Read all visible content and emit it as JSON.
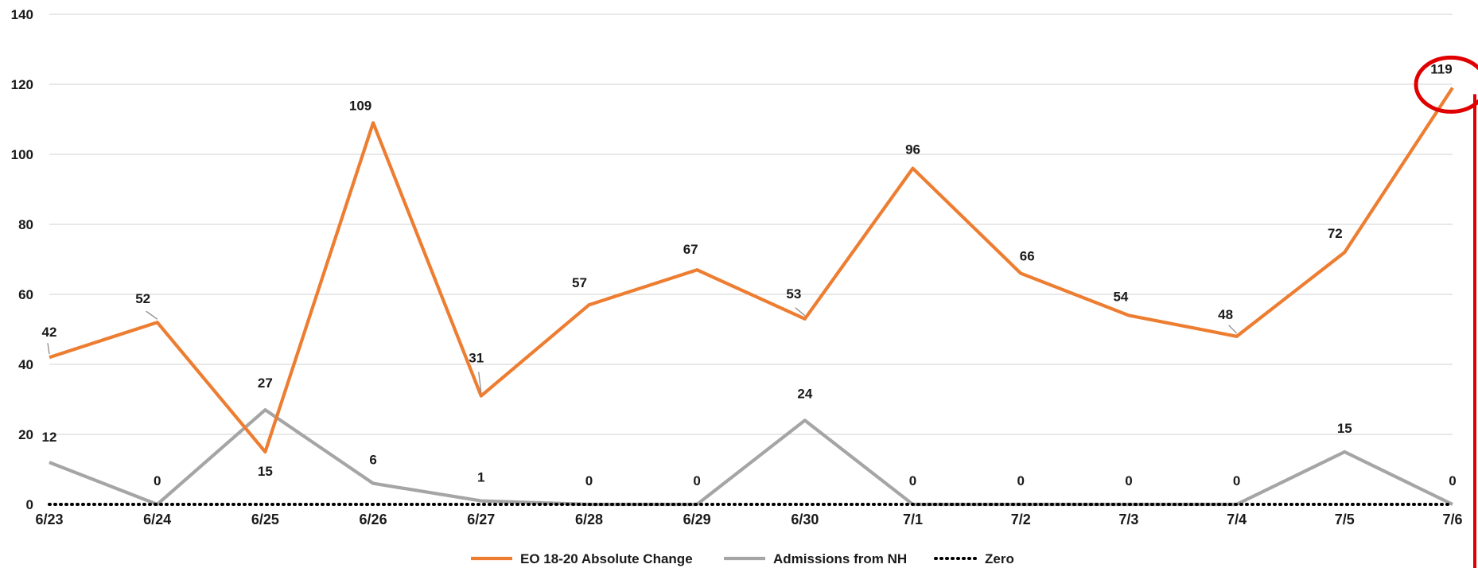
{
  "chart_data": {
    "type": "line",
    "categories": [
      "6/23",
      "6/24",
      "6/25",
      "6/26",
      "6/27",
      "6/28",
      "6/29",
      "6/30",
      "7/1",
      "7/2",
      "7/3",
      "7/4",
      "7/5",
      "7/6"
    ],
    "ylim": [
      0,
      140
    ],
    "yticks": [
      0,
      20,
      40,
      60,
      80,
      100,
      120,
      140
    ],
    "grid": true,
    "legend_position": "bottom",
    "series": [
      {
        "name": "EO 18-20 Absolute Change",
        "color": "#ED7D31",
        "style": "solid",
        "values": [
          42,
          52,
          15,
          109,
          31,
          57,
          67,
          53,
          96,
          66,
          54,
          48,
          72,
          119
        ]
      },
      {
        "name": "Admissions from NH",
        "color": "#A5A5A5",
        "style": "solid",
        "values": [
          12,
          0,
          27,
          6,
          1,
          0,
          0,
          24,
          0,
          0,
          0,
          0,
          15,
          0
        ]
      },
      {
        "name": "Zero",
        "color": "#000000",
        "style": "dotted",
        "values": [
          0,
          0,
          0,
          0,
          0,
          0,
          0,
          0,
          0,
          0,
          0,
          0,
          0,
          0
        ]
      }
    ],
    "annotations": [
      {
        "type": "circle",
        "category": "7/6",
        "value": 119,
        "color": "#E00000"
      }
    ]
  }
}
